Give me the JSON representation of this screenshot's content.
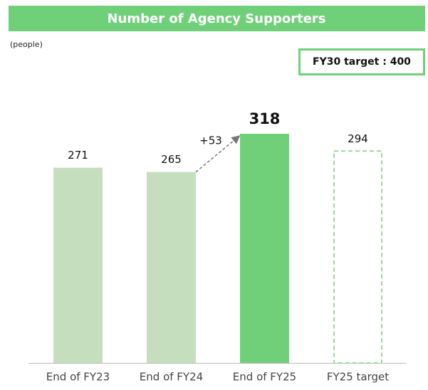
{
  "chart_data": {
    "type": "bar",
    "title": "Number of Agency Supporters",
    "unit_label": "(people)",
    "target_box": "FY30 target : 400",
    "categories": [
      "End of FY23",
      "End of FY24",
      "End of FY25",
      "FY25 target"
    ],
    "values": [
      271,
      265,
      318,
      294
    ],
    "colors": [
      "#c5dfbe",
      "#c5dfbe",
      "#70d07a",
      "#9ad99a"
    ],
    "styles": [
      "solid",
      "solid",
      "solid",
      "dashed"
    ],
    "highlight": 2,
    "annotation": "+53"
  }
}
